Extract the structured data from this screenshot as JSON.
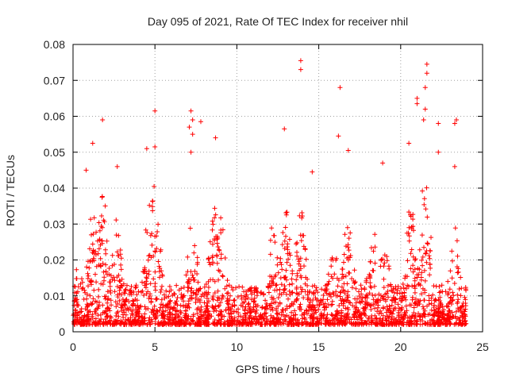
{
  "chart_data": {
    "type": "scatter",
    "title": "Day 095 of 2021, Rate Of TEC Index for receiver nhil",
    "xlabel": "GPS time / hours",
    "ylabel": "ROTI / TECUs",
    "xlim": [
      0,
      25
    ],
    "ylim": [
      0,
      0.08
    ],
    "x_ticks": [
      "0",
      "5",
      "10",
      "15",
      "20",
      "25"
    ],
    "y_ticks": [
      "0",
      "0.01",
      "0.02",
      "0.03",
      "0.04",
      "0.05",
      "0.06",
      "0.07",
      "0.08"
    ],
    "grid": true,
    "marker": "+",
    "series": [
      {
        "name": "ROTI",
        "color": "#ff0000",
        "description": "dense cloud of ~many points between 0 and 24 h, mostly 0.002-0.02 TECU",
        "outliers": [
          {
            "x": 13.9,
            "y": 0.0755
          },
          {
            "x": 13.9,
            "y": 0.073
          },
          {
            "x": 16.3,
            "y": 0.068
          },
          {
            "x": 21.6,
            "y": 0.0745
          },
          {
            "x": 21.6,
            "y": 0.072
          },
          {
            "x": 21.5,
            "y": 0.068
          },
          {
            "x": 21.0,
            "y": 0.065
          },
          {
            "x": 21.0,
            "y": 0.0635
          },
          {
            "x": 21.5,
            "y": 0.062
          },
          {
            "x": 5.0,
            "y": 0.0615
          },
          {
            "x": 7.2,
            "y": 0.0615
          },
          {
            "x": 7.3,
            "y": 0.059
          },
          {
            "x": 7.1,
            "y": 0.057
          },
          {
            "x": 7.8,
            "y": 0.0585
          },
          {
            "x": 1.8,
            "y": 0.059
          },
          {
            "x": 23.4,
            "y": 0.059
          },
          {
            "x": 23.3,
            "y": 0.058
          },
          {
            "x": 22.3,
            "y": 0.058
          },
          {
            "x": 21.4,
            "y": 0.059
          },
          {
            "x": 12.9,
            "y": 0.0565
          },
          {
            "x": 16.2,
            "y": 0.0545
          },
          {
            "x": 7.3,
            "y": 0.055
          },
          {
            "x": 8.7,
            "y": 0.054
          },
          {
            "x": 1.2,
            "y": 0.0525
          },
          {
            "x": 4.5,
            "y": 0.051
          },
          {
            "x": 5.0,
            "y": 0.0515
          },
          {
            "x": 7.2,
            "y": 0.05
          },
          {
            "x": 16.8,
            "y": 0.0505
          },
          {
            "x": 22.3,
            "y": 0.05
          },
          {
            "x": 20.5,
            "y": 0.0525
          },
          {
            "x": 18.9,
            "y": 0.047
          },
          {
            "x": 2.7,
            "y": 0.046
          },
          {
            "x": 23.3,
            "y": 0.046
          },
          {
            "x": 14.6,
            "y": 0.0445
          },
          {
            "x": 0.8,
            "y": 0.045
          }
        ]
      }
    ]
  }
}
